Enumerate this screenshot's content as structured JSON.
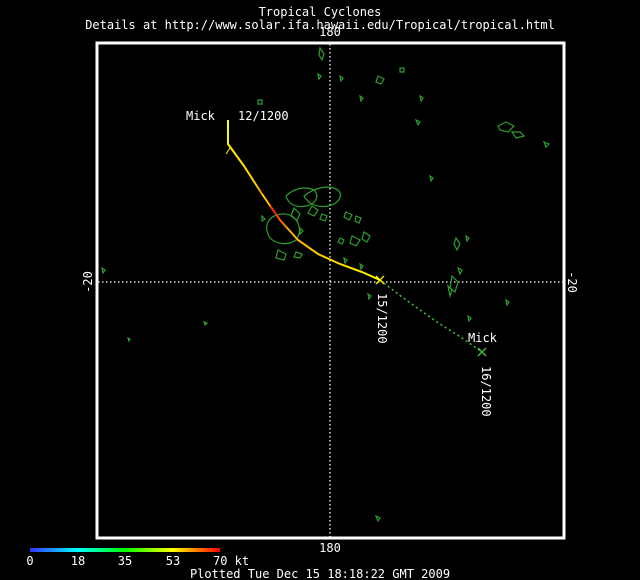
{
  "header": {
    "title": "Tropical Cyclones",
    "subtitle": "Details at http://www.solar.ifa.hawaii.edu/Tropical/tropical.html"
  },
  "map": {
    "longitude_label": "180",
    "latitude_label": "-20",
    "frame_color": "#ffffff",
    "land_color": "#2e9e2e",
    "graticule_color": "#ffffff"
  },
  "storm": {
    "name_start": "Mick",
    "start_time": "12/1200",
    "mid_time": "15/1200",
    "name_forecast": "Mick",
    "forecast_time": "16/1200",
    "forecast_color": "#3ec43e",
    "forecast_marker": "x-marker"
  },
  "legend": {
    "ticks": [
      "0",
      "18",
      "35",
      "53",
      "70 kt"
    ],
    "colors": [
      "#3333ff",
      "#00ffff",
      "#00ff00",
      "#ffff00",
      "#ff0000"
    ]
  },
  "footer": {
    "plotted": "Plotted Tue Dec 15 18:18:22 GMT 2009"
  }
}
